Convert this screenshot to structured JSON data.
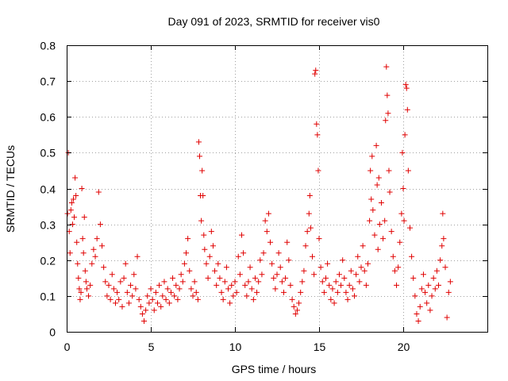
{
  "chart_data": {
    "type": "scatter",
    "title": "Day 091 of 2023, SRMTID for receiver vis0",
    "xlabel": "GPS time / hours",
    "ylabel": "SRMTID / TECUs",
    "xlim": [
      0,
      25
    ],
    "ylim": [
      0,
      0.8
    ],
    "xticks": [
      "0",
      "5",
      "10",
      "15",
      "20"
    ],
    "yticks": [
      "0",
      "0.1",
      "0.2",
      "0.3",
      "0.4",
      "0.5",
      "0.6",
      "0.7",
      "0.8"
    ],
    "grid": true,
    "marker": "+",
    "colors": {
      "points": "#e00000",
      "grid": "#a0a0a0",
      "axis": "#000000"
    },
    "series": [
      {
        "name": "SRMTID",
        "points": [
          [
            0.05,
            0.33
          ],
          [
            0.1,
            0.5
          ],
          [
            0.15,
            0.28
          ],
          [
            0.2,
            0.22
          ],
          [
            0.25,
            0.34
          ],
          [
            0.3,
            0.36
          ],
          [
            0.35,
            0.3
          ],
          [
            0.4,
            0.37
          ],
          [
            0.45,
            0.32
          ],
          [
            0.5,
            0.43
          ],
          [
            0.55,
            0.38
          ],
          [
            0.6,
            0.25
          ],
          [
            0.65,
            0.19
          ],
          [
            0.7,
            0.15
          ],
          [
            0.75,
            0.12
          ],
          [
            0.8,
            0.09
          ],
          [
            0.85,
            0.11
          ],
          [
            0.9,
            0.4
          ],
          [
            0.95,
            0.26
          ],
          [
            1.0,
            0.22
          ],
          [
            1.05,
            0.32
          ],
          [
            1.1,
            0.17
          ],
          [
            1.15,
            0.14
          ],
          [
            1.2,
            0.12
          ],
          [
            1.3,
            0.1
          ],
          [
            1.4,
            0.13
          ],
          [
            1.5,
            0.19
          ],
          [
            1.6,
            0.23
          ],
          [
            1.7,
            0.21
          ],
          [
            1.8,
            0.26
          ],
          [
            1.9,
            0.39
          ],
          [
            2.0,
            0.3
          ],
          [
            2.1,
            0.24
          ],
          [
            2.2,
            0.18
          ],
          [
            2.3,
            0.14
          ],
          [
            2.4,
            0.1
          ],
          [
            2.5,
            0.13
          ],
          [
            2.6,
            0.09
          ],
          [
            2.7,
            0.16
          ],
          [
            2.8,
            0.12
          ],
          [
            2.9,
            0.08
          ],
          [
            3.0,
            0.11
          ],
          [
            3.1,
            0.09
          ],
          [
            3.2,
            0.14
          ],
          [
            3.3,
            0.07
          ],
          [
            3.4,
            0.15
          ],
          [
            3.5,
            0.19
          ],
          [
            3.6,
            0.11
          ],
          [
            3.7,
            0.08
          ],
          [
            3.8,
            0.13
          ],
          [
            3.9,
            0.1
          ],
          [
            4.0,
            0.16
          ],
          [
            4.1,
            0.12
          ],
          [
            4.2,
            0.21
          ],
          [
            4.3,
            0.09
          ],
          [
            4.4,
            0.07
          ],
          [
            4.5,
            0.05
          ],
          [
            4.6,
            0.03
          ],
          [
            4.7,
            0.06
          ],
          [
            4.8,
            0.1
          ],
          [
            4.9,
            0.08
          ],
          [
            5.0,
            0.12
          ],
          [
            5.1,
            0.09
          ],
          [
            5.2,
            0.06
          ],
          [
            5.3,
            0.11
          ],
          [
            5.4,
            0.08
          ],
          [
            5.5,
            0.13
          ],
          [
            5.6,
            0.07
          ],
          [
            5.7,
            0.1
          ],
          [
            5.8,
            0.14
          ],
          [
            5.9,
            0.09
          ],
          [
            6.0,
            0.12
          ],
          [
            6.1,
            0.08
          ],
          [
            6.2,
            0.11
          ],
          [
            6.3,
            0.15
          ],
          [
            6.4,
            0.1
          ],
          [
            6.5,
            0.13
          ],
          [
            6.6,
            0.09
          ],
          [
            6.7,
            0.12
          ],
          [
            6.8,
            0.16
          ],
          [
            6.9,
            0.14
          ],
          [
            7.0,
            0.19
          ],
          [
            7.1,
            0.22
          ],
          [
            7.2,
            0.26
          ],
          [
            7.3,
            0.17
          ],
          [
            7.4,
            0.12
          ],
          [
            7.5,
            0.1
          ],
          [
            7.6,
            0.14
          ],
          [
            7.7,
            0.11
          ],
          [
            7.8,
            0.09
          ],
          [
            7.85,
            0.53
          ],
          [
            7.9,
            0.49
          ],
          [
            7.95,
            0.38
          ],
          [
            8.0,
            0.31
          ],
          [
            8.05,
            0.45
          ],
          [
            8.1,
            0.38
          ],
          [
            8.15,
            0.27
          ],
          [
            8.2,
            0.23
          ],
          [
            8.3,
            0.19
          ],
          [
            8.4,
            0.15
          ],
          [
            8.5,
            0.21
          ],
          [
            8.6,
            0.28
          ],
          [
            8.7,
            0.24
          ],
          [
            8.8,
            0.17
          ],
          [
            8.9,
            0.13
          ],
          [
            9.0,
            0.19
          ],
          [
            9.1,
            0.15
          ],
          [
            9.2,
            0.11
          ],
          [
            9.3,
            0.09
          ],
          [
            9.4,
            0.14
          ],
          [
            9.5,
            0.18
          ],
          [
            9.6,
            0.12
          ],
          [
            9.7,
            0.08
          ],
          [
            9.8,
            0.13
          ],
          [
            9.9,
            0.1
          ],
          [
            10.0,
            0.14
          ],
          [
            10.1,
            0.11
          ],
          [
            10.2,
            0.21
          ],
          [
            10.3,
            0.16
          ],
          [
            10.4,
            0.27
          ],
          [
            10.5,
            0.22
          ],
          [
            10.6,
            0.13
          ],
          [
            10.7,
            0.1
          ],
          [
            10.8,
            0.14
          ],
          [
            10.9,
            0.18
          ],
          [
            11.0,
            0.12
          ],
          [
            11.1,
            0.09
          ],
          [
            11.2,
            0.15
          ],
          [
            11.3,
            0.11
          ],
          [
            11.4,
            0.14
          ],
          [
            11.5,
            0.2
          ],
          [
            11.6,
            0.16
          ],
          [
            11.7,
            0.22
          ],
          [
            11.8,
            0.31
          ],
          [
            11.9,
            0.28
          ],
          [
            12.0,
            0.33
          ],
          [
            12.1,
            0.25
          ],
          [
            12.2,
            0.19
          ],
          [
            12.3,
            0.15
          ],
          [
            12.4,
            0.12
          ],
          [
            12.5,
            0.16
          ],
          [
            12.6,
            0.22
          ],
          [
            12.7,
            0.18
          ],
          [
            12.8,
            0.14
          ],
          [
            12.9,
            0.11
          ],
          [
            13.0,
            0.15
          ],
          [
            13.1,
            0.25
          ],
          [
            13.2,
            0.2
          ],
          [
            13.3,
            0.13
          ],
          [
            13.4,
            0.09
          ],
          [
            13.5,
            0.07
          ],
          [
            13.6,
            0.05
          ],
          [
            13.7,
            0.06
          ],
          [
            13.8,
            0.08
          ],
          [
            13.9,
            0.11
          ],
          [
            14.0,
            0.14
          ],
          [
            14.1,
            0.17
          ],
          [
            14.2,
            0.24
          ],
          [
            14.3,
            0.28
          ],
          [
            14.4,
            0.33
          ],
          [
            14.45,
            0.38
          ],
          [
            14.5,
            0.29
          ],
          [
            14.6,
            0.21
          ],
          [
            14.7,
            0.16
          ],
          [
            14.75,
            0.72
          ],
          [
            14.8,
            0.73
          ],
          [
            14.85,
            0.58
          ],
          [
            14.9,
            0.55
          ],
          [
            14.95,
            0.45
          ],
          [
            15.0,
            0.26
          ],
          [
            15.1,
            0.18
          ],
          [
            15.2,
            0.14
          ],
          [
            15.3,
            0.11
          ],
          [
            15.4,
            0.15
          ],
          [
            15.5,
            0.19
          ],
          [
            15.6,
            0.13
          ],
          [
            15.7,
            0.09
          ],
          [
            15.8,
            0.12
          ],
          [
            15.9,
            0.08
          ],
          [
            16.0,
            0.14
          ],
          [
            16.1,
            0.11
          ],
          [
            16.2,
            0.16
          ],
          [
            16.3,
            0.13
          ],
          [
            16.4,
            0.2
          ],
          [
            16.5,
            0.15
          ],
          [
            16.6,
            0.11
          ],
          [
            16.7,
            0.09
          ],
          [
            16.8,
            0.13
          ],
          [
            16.9,
            0.17
          ],
          [
            17.0,
            0.12
          ],
          [
            17.1,
            0.1
          ],
          [
            17.2,
            0.16
          ],
          [
            17.3,
            0.21
          ],
          [
            17.4,
            0.14
          ],
          [
            17.5,
            0.18
          ],
          [
            17.6,
            0.24
          ],
          [
            17.7,
            0.17
          ],
          [
            17.8,
            0.13
          ],
          [
            17.9,
            0.19
          ],
          [
            18.0,
            0.31
          ],
          [
            18.05,
            0.45
          ],
          [
            18.1,
            0.37
          ],
          [
            18.15,
            0.49
          ],
          [
            18.2,
            0.34
          ],
          [
            18.3,
            0.27
          ],
          [
            18.4,
            0.52
          ],
          [
            18.45,
            0.41
          ],
          [
            18.5,
            0.23
          ],
          [
            18.55,
            0.43
          ],
          [
            18.6,
            0.3
          ],
          [
            18.7,
            0.36
          ],
          [
            18.8,
            0.26
          ],
          [
            18.9,
            0.31
          ],
          [
            18.95,
            0.59
          ],
          [
            19.0,
            0.74
          ],
          [
            19.05,
            0.66
          ],
          [
            19.1,
            0.61
          ],
          [
            19.15,
            0.45
          ],
          [
            19.2,
            0.39
          ],
          [
            19.3,
            0.28
          ],
          [
            19.4,
            0.21
          ],
          [
            19.5,
            0.17
          ],
          [
            19.6,
            0.13
          ],
          [
            19.7,
            0.18
          ],
          [
            19.8,
            0.25
          ],
          [
            19.9,
            0.33
          ],
          [
            19.95,
            0.5
          ],
          [
            20.0,
            0.4
          ],
          [
            20.05,
            0.31
          ],
          [
            20.1,
            0.55
          ],
          [
            20.15,
            0.69
          ],
          [
            20.2,
            0.68
          ],
          [
            20.25,
            0.62
          ],
          [
            20.3,
            0.45
          ],
          [
            20.4,
            0.29
          ],
          [
            20.5,
            0.21
          ],
          [
            20.6,
            0.15
          ],
          [
            20.7,
            0.1
          ],
          [
            20.8,
            0.05
          ],
          [
            20.9,
            0.03
          ],
          [
            21.0,
            0.07
          ],
          [
            21.1,
            0.12
          ],
          [
            21.2,
            0.16
          ],
          [
            21.3,
            0.11
          ],
          [
            21.4,
            0.08
          ],
          [
            21.5,
            0.13
          ],
          [
            21.6,
            0.06
          ],
          [
            21.7,
            0.1
          ],
          [
            21.8,
            0.15
          ],
          [
            21.9,
            0.12
          ],
          [
            22.0,
            0.17
          ],
          [
            22.1,
            0.13
          ],
          [
            22.2,
            0.2
          ],
          [
            22.3,
            0.24
          ],
          [
            22.35,
            0.33
          ],
          [
            22.4,
            0.26
          ],
          [
            22.5,
            0.18
          ],
          [
            22.6,
            0.04
          ],
          [
            22.7,
            0.11
          ],
          [
            22.8,
            0.14
          ]
        ]
      }
    ]
  }
}
